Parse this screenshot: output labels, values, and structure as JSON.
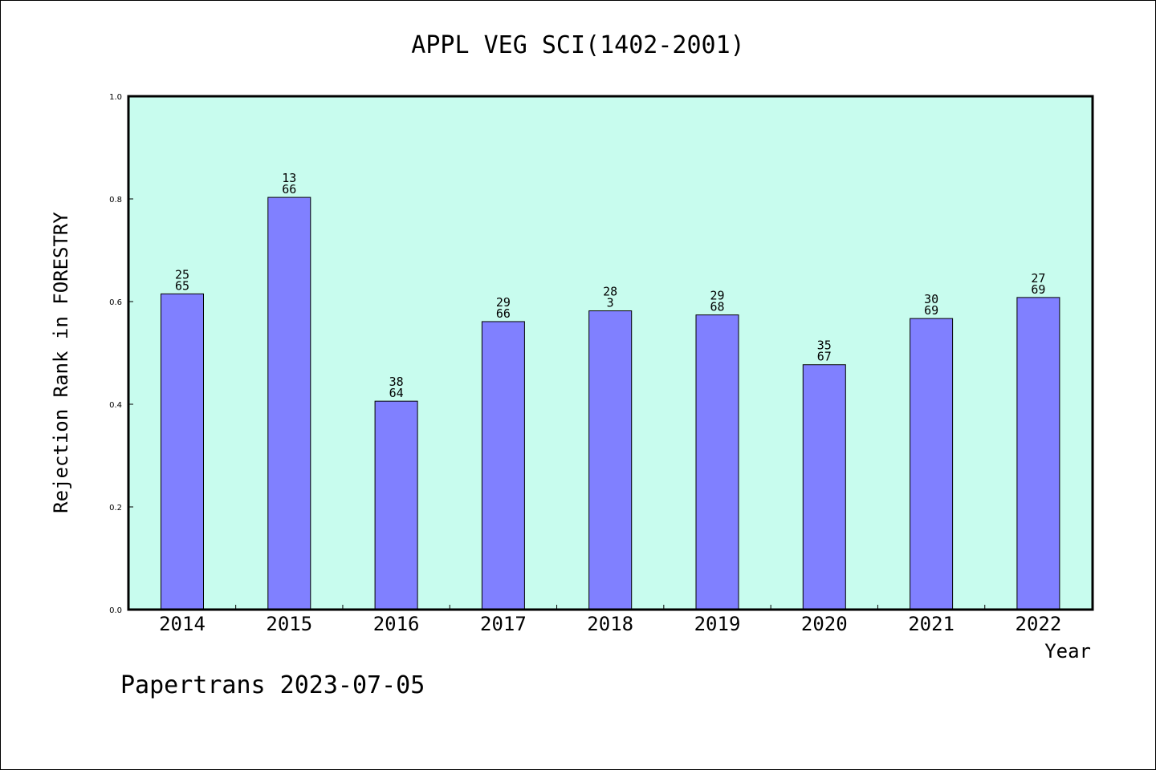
{
  "chart_data": {
    "type": "bar",
    "title": "APPL VEG SCI(1402-2001)",
    "xlabel": "Year",
    "ylabel": "Rejection Rank in FORESTRY",
    "ylim": [
      0.0,
      1.0
    ],
    "yticks": [
      "0.0",
      "0.2",
      "0.4",
      "0.6",
      "0.8",
      "1.0"
    ],
    "categories": [
      "2014",
      "2015",
      "2016",
      "2017",
      "2018",
      "2019",
      "2020",
      "2021",
      "2022"
    ],
    "values": [
      0.615,
      0.803,
      0.406,
      0.561,
      0.582,
      0.574,
      0.477,
      0.567,
      0.608
    ],
    "data_labels": [
      [
        "25",
        "65"
      ],
      [
        "13",
        "66"
      ],
      [
        "38",
        "64"
      ],
      [
        "29",
        "66"
      ],
      [
        "28",
        "3"
      ],
      [
        "29",
        "68"
      ],
      [
        "35",
        "67"
      ],
      [
        "30",
        "69"
      ],
      [
        "27",
        "69"
      ]
    ],
    "grid": false,
    "colors": {
      "plot_background": "#c8fcee",
      "bar_fill": "#8080ff",
      "bar_edge": "#000000"
    }
  },
  "footer": "Papertrans 2023-07-05"
}
